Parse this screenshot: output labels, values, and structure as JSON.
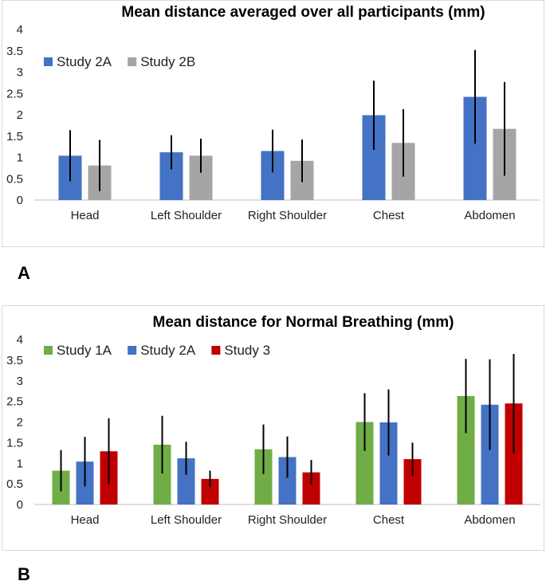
{
  "panel_labels": {
    "a": "A",
    "b": "B"
  },
  "chart_data": [
    {
      "type": "bar",
      "title": "Mean distance averaged over all participants (mm)",
      "categories": [
        "Head",
        "Left Shoulder",
        "Right Shoulder",
        "Chest",
        "Abdomen"
      ],
      "ylim": [
        0,
        4
      ],
      "yticks": [
        "0",
        "0.5",
        "1",
        "1.5",
        "2",
        "2.5",
        "3",
        "3.5",
        "4"
      ],
      "legend_position": "top-left",
      "series": [
        {
          "name": "Study 2A",
          "color": "#4472C4",
          "values": [
            1.04,
            1.12,
            1.15,
            1.99,
            2.42
          ],
          "errors": [
            0.6,
            0.4,
            0.5,
            0.81,
            1.1
          ]
        },
        {
          "name": "Study 2B",
          "color": "#A5A5A5",
          "values": [
            0.81,
            1.04,
            0.92,
            1.34,
            1.67
          ],
          "errors": [
            0.6,
            0.4,
            0.5,
            0.79,
            1.1
          ]
        }
      ]
    },
    {
      "type": "bar",
      "title": "Mean distance for Normal Breathing (mm)",
      "categories": [
        "Head",
        "Left Shoulder",
        "Right Shoulder",
        "Chest",
        "Abdomen"
      ],
      "ylim": [
        0,
        4
      ],
      "yticks": [
        "0",
        "0.5",
        "1",
        "1.5",
        "2",
        "2.5",
        "3",
        "3.5",
        "4"
      ],
      "legend_position": "top-left",
      "series": [
        {
          "name": "Study 1A",
          "color": "#70AD47",
          "values": [
            0.82,
            1.45,
            1.34,
            2.0,
            2.63
          ],
          "errors": [
            0.5,
            0.7,
            0.6,
            0.7,
            0.9
          ]
        },
        {
          "name": "Study 2A",
          "color": "#4472C4",
          "values": [
            1.04,
            1.12,
            1.15,
            1.99,
            2.42
          ],
          "errors": [
            0.6,
            0.4,
            0.5,
            0.8,
            1.1
          ]
        },
        {
          "name": "Study 3",
          "color": "#C00000",
          "values": [
            1.29,
            0.62,
            0.78,
            1.1,
            2.45
          ],
          "errors": [
            0.8,
            0.2,
            0.3,
            0.4,
            1.2
          ]
        }
      ]
    }
  ]
}
